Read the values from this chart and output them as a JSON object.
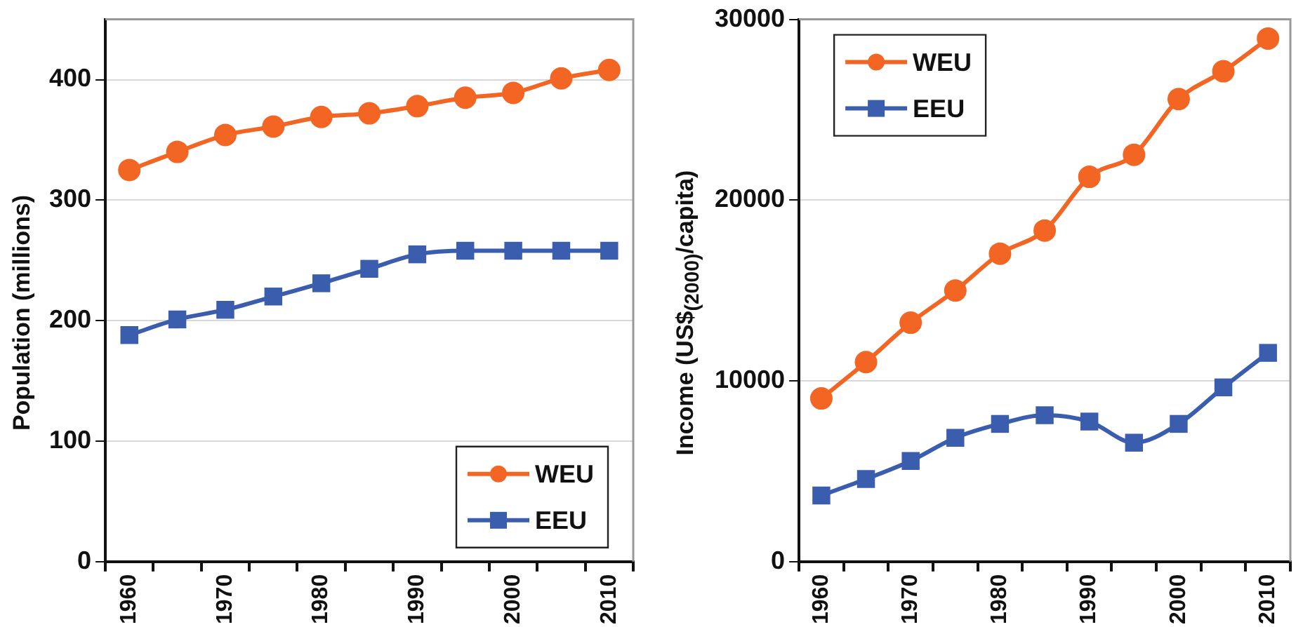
{
  "chart_data": [
    {
      "type": "line",
      "categories": [
        "1960",
        null,
        "1970",
        null,
        "1980",
        null,
        "1990",
        null,
        "2000",
        null,
        "2010"
      ],
      "ylabel": "Population (millions)",
      "ylim": [
        0,
        450
      ],
      "yticks": [
        0,
        100,
        200,
        300,
        400
      ],
      "grid": "y",
      "legend": "bottom right",
      "series": [
        {
          "name": "WEU",
          "color": "#f26522",
          "marker": "circle",
          "values": [
            325,
            340,
            354,
            361,
            369,
            372,
            378,
            385,
            389,
            401,
            408
          ]
        },
        {
          "name": "EEU",
          "color": "#3a5dae",
          "marker": "square",
          "values": [
            188,
            201,
            209,
            220,
            231,
            243,
            255,
            258,
            258,
            258,
            258
          ]
        }
      ]
    },
    {
      "type": "line",
      "categories": [
        "1960",
        null,
        "1970",
        null,
        "1980",
        null,
        "1990",
        null,
        "2000",
        null,
        "2010"
      ],
      "ylabel": "Income (US$$_{(2000)}$/capita)",
      "ylim": [
        0,
        30000
      ],
      "yticks": [
        0,
        10000,
        20000,
        30000
      ],
      "grid": "y",
      "legend": "top left",
      "series": [
        {
          "name": "WEU",
          "color": "#f26522",
          "marker": "circle",
          "values": [
            9030,
            11040,
            13220,
            15000,
            17040,
            18320,
            21290,
            22510,
            25590,
            27130,
            28940
          ]
        },
        {
          "name": "EEU",
          "color": "#3a5dae",
          "marker": "square",
          "values": [
            3660,
            4570,
            5570,
            6850,
            7620,
            8100,
            7750,
            6580,
            7620,
            9640,
            11550
          ]
        }
      ]
    }
  ]
}
